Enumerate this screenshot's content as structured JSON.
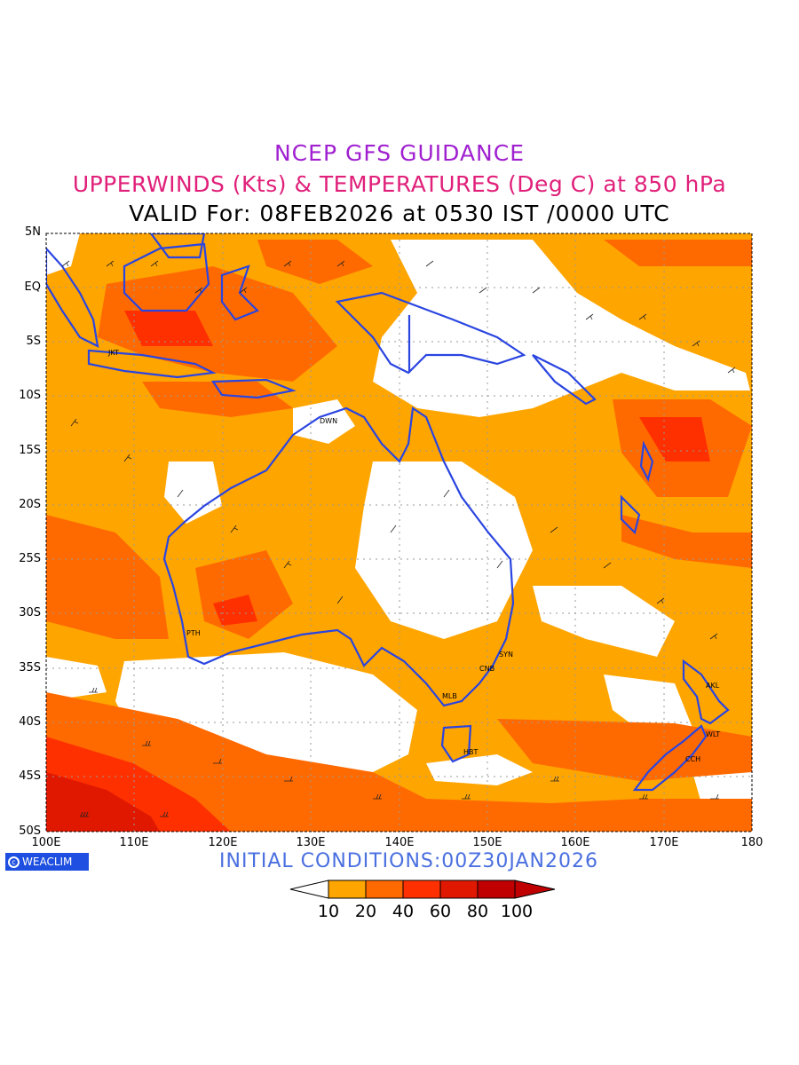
{
  "title": {
    "line1": "NCEP GFS GUIDANCE",
    "line2": "UPPERWINDS (Kts) & TEMPERATURES (Deg C) at 850 hPa",
    "line3": "VALID For: 08FEB2026 at 0530 IST /0000 UTC"
  },
  "map": {
    "lat_labels": [
      "5N",
      "EQ",
      "5S",
      "10S",
      "15S",
      "20S",
      "25S",
      "30S",
      "35S",
      "40S",
      "45S",
      "50S"
    ],
    "lon_labels": [
      "100E",
      "110E",
      "120E",
      "130E",
      "140E",
      "150E",
      "160E",
      "170E",
      "180"
    ],
    "cities": [
      "JKT",
      "DWN",
      "PTH",
      "SYN",
      "CNB",
      "MLB",
      "HBT",
      "AKL",
      "WLT",
      "CCH"
    ],
    "colors": {
      "coast": "#2a45e0",
      "grid": "#999999",
      "fill_10_20": "#ffa500",
      "fill_20_40": "#ff6a00",
      "fill_40_60": "#ff3000",
      "fill_60_80": "#e01800",
      "fill_80_100": "#c00000"
    }
  },
  "footer": {
    "logo": "WEACLIM",
    "initial_conditions": "INITIAL CONDITIONS:00Z30JAN2026"
  },
  "colorbar": {
    "labels": [
      "10",
      "20",
      "40",
      "60",
      "80",
      "100"
    ],
    "colors": [
      "#ffffff",
      "#ffa500",
      "#ff6a00",
      "#ff3000",
      "#e01800",
      "#c00000",
      "#c00000"
    ]
  }
}
